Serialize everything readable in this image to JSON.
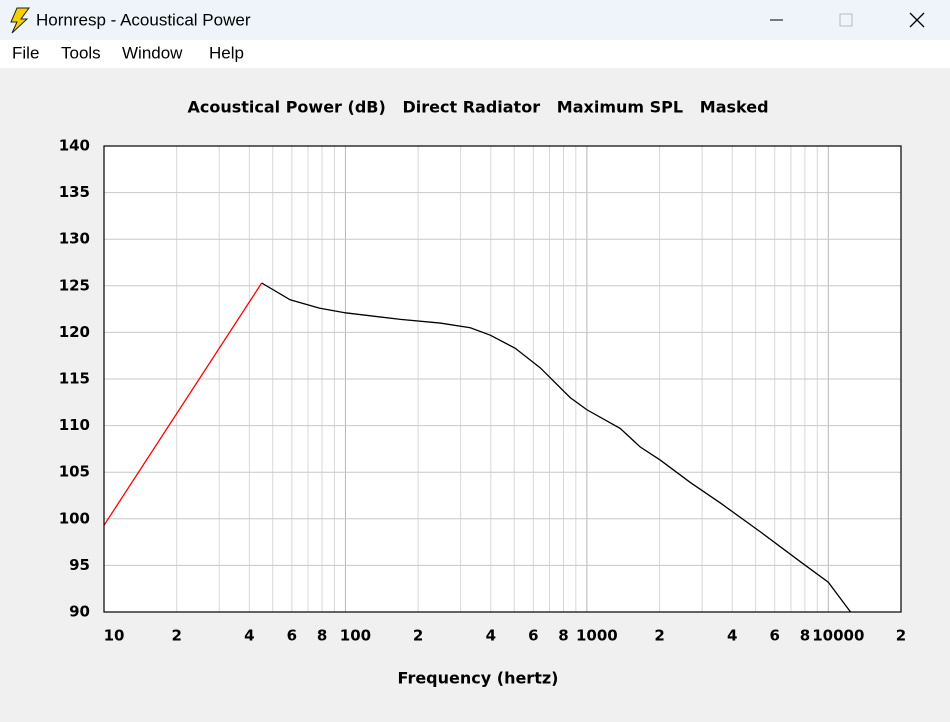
{
  "window": {
    "title": "Hornresp - Acoustical Power",
    "menu": [
      "File",
      "Tools",
      "Window",
      "Help"
    ]
  },
  "chart_data": {
    "type": "line",
    "title": "Acoustical Power (dB)   Direct Radiator   Maximum SPL   Masked",
    "x_label": "Frequency (hertz)",
    "xscale": "log",
    "grid": true,
    "xlim": [
      10,
      20000
    ],
    "ylim": [
      90,
      140
    ],
    "yticks": [
      90,
      95,
      100,
      105,
      110,
      115,
      120,
      125,
      130,
      135,
      140
    ],
    "xticks": [
      10,
      {
        "value": 20,
        "label": "2"
      },
      {
        "value": 40,
        "label": "4"
      },
      {
        "value": 60,
        "label": "6"
      },
      {
        "value": 80,
        "label": "8"
      },
      100,
      {
        "value": 200,
        "label": "2"
      },
      {
        "value": 400,
        "label": "4"
      },
      {
        "value": 600,
        "label": "6"
      },
      {
        "value": 800,
        "label": "8"
      },
      1000,
      {
        "value": 2000,
        "label": "2"
      },
      {
        "value": 4000,
        "label": "4"
      },
      {
        "value": 6000,
        "label": "6"
      },
      {
        "value": 8000,
        "label": "8"
      },
      10000,
      {
        "value": 20000,
        "label": "2"
      }
    ],
    "x_minor_ticks": [
      30,
      50,
      70,
      90,
      300,
      500,
      700,
      900,
      3000,
      5000,
      7000,
      9000
    ],
    "series": [
      {
        "color": "#ff0000",
        "x": [
          10,
          45
        ],
        "values": [
          99.3,
          125.3
        ]
      },
      {
        "color": "#000000",
        "x": [
          45,
          59,
          78,
          100,
          169,
          247,
          329,
          398,
          505,
          641,
          853,
          1000,
          1374,
          1664,
          2013,
          2680,
          3570,
          5233,
          7659,
          10000,
          12360
        ],
        "values": [
          125.3,
          123.5,
          122.6,
          122.1,
          121.4,
          121.0,
          120.5,
          119.7,
          118.3,
          116.2,
          113.0,
          111.7,
          109.7,
          107.7,
          106.3,
          103.9,
          101.7,
          98.6,
          95.4,
          93.2,
          90.0
        ]
      }
    ]
  }
}
